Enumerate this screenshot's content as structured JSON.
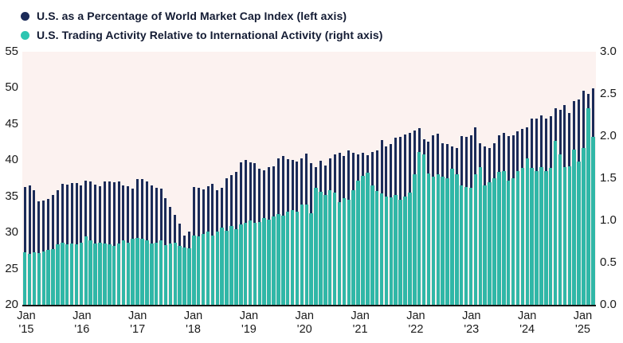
{
  "legend": {
    "items": [
      {
        "name": "market-cap-series",
        "label": "U.S. as a Percentage of World Market Cap Index (left axis)",
        "color": "#1b2b58"
      },
      {
        "name": "trading-activity-series",
        "label": "U.S. Trading Activity Relative to International Activity (right axis)",
        "color": "#2cc5b1"
      }
    ]
  },
  "chart_data": {
    "type": "bar",
    "title": "",
    "x_start": "Jan 2015",
    "x_end": "Feb 2025",
    "x_frequency": "monthly",
    "x_tick_labels": [
      {
        "month": "Jan",
        "year": "'15"
      },
      {
        "month": "Jan",
        "year": "'16"
      },
      {
        "month": "Jan",
        "year": "'17"
      },
      {
        "month": "Jan",
        "year": "'18"
      },
      {
        "month": "Jan",
        "year": "'19"
      },
      {
        "month": "Jan",
        "year": "'20"
      },
      {
        "month": "Jan",
        "year": "'21"
      },
      {
        "month": "Jan",
        "year": "'22"
      },
      {
        "month": "Jan",
        "year": "'23"
      },
      {
        "month": "Jan",
        "year": "'24"
      },
      {
        "month": "Jan",
        "year": "'25"
      }
    ],
    "left_axis": {
      "min": 20,
      "max": 55,
      "ticks": [
        "55",
        "50",
        "45",
        "40",
        "35",
        "30",
        "25",
        "20"
      ]
    },
    "right_axis": {
      "min": 0.0,
      "max": 3.0,
      "ticks": [
        "3.0",
        "2.5",
        "2.0",
        "1.5",
        "1.0",
        "0.5",
        "0.0"
      ]
    },
    "grid": false,
    "legend_position": "top-left",
    "plot_background": "#fcf2f0",
    "baseline_color": "#161616",
    "series": [
      {
        "name": "U.S. as a Percentage of World Market Cap Index",
        "axis": "left",
        "color": "#1b2b58",
        "values": [
          36.3,
          36.5,
          35.9,
          34.3,
          34.4,
          34.6,
          35.2,
          35.9,
          36.7,
          36.6,
          36.8,
          36.9,
          36.5,
          37.2,
          37.1,
          36.6,
          36.4,
          37.1,
          37.1,
          37.0,
          37.1,
          36.5,
          36.4,
          36.1,
          37.4,
          37.4,
          37.1,
          36.5,
          36.2,
          36.1,
          34.7,
          33.5,
          32.4,
          31.2,
          29.6,
          30.1,
          36.3,
          36.2,
          36.0,
          36.4,
          36.7,
          35.9,
          36.2,
          37.5,
          38.0,
          38.4,
          39.7,
          40.0,
          39.7,
          39.6,
          38.8,
          38.6,
          39.0,
          39.2,
          40.3,
          40.6,
          40.1,
          40.0,
          39.8,
          40.3,
          40.9,
          39.6,
          39.0,
          39.9,
          39.3,
          40.3,
          40.8,
          41.0,
          40.6,
          41.4,
          41.0,
          40.8,
          41.0,
          40.7,
          41.1,
          41.4,
          42.8,
          41.9,
          42.2,
          43.1,
          43.2,
          43.6,
          43.8,
          44.1,
          44.4,
          42.9,
          42.6,
          43.4,
          43.7,
          42.4,
          42.2,
          41.9,
          41.7,
          43.3,
          43.2,
          43.4,
          44.6,
          42.4,
          41.9,
          41.7,
          42.3,
          43.5,
          43.8,
          43.3,
          43.4,
          44.0,
          44.3,
          44.6,
          45.8,
          45.8,
          46.2,
          45.8,
          46.1,
          47.2,
          47.0,
          47.6,
          46.5,
          48.2,
          48.4,
          49.6,
          49.2,
          49.9
        ]
      },
      {
        "name": "U.S. Trading Activity Relative to International Activity",
        "axis": "right",
        "color": "#30b7a7",
        "values": [
          0.62,
          0.6,
          0.62,
          0.61,
          0.63,
          0.65,
          0.66,
          0.72,
          0.74,
          0.72,
          0.73,
          0.72,
          0.74,
          0.81,
          0.76,
          0.73,
          0.74,
          0.73,
          0.72,
          0.7,
          0.73,
          0.76,
          0.74,
          0.78,
          0.79,
          0.78,
          0.76,
          0.73,
          0.74,
          0.76,
          0.71,
          0.73,
          0.74,
          0.7,
          0.68,
          0.67,
          0.82,
          0.81,
          0.84,
          0.87,
          0.82,
          0.87,
          0.92,
          0.88,
          0.93,
          0.9,
          0.95,
          0.97,
          1.0,
          0.97,
          0.98,
          1.03,
          1.01,
          1.05,
          1.08,
          1.06,
          1.1,
          1.12,
          1.1,
          1.19,
          1.19,
          1.09,
          1.39,
          1.34,
          1.3,
          1.36,
          1.33,
          1.22,
          1.26,
          1.25,
          1.36,
          1.47,
          1.53,
          1.57,
          1.42,
          1.35,
          1.32,
          1.28,
          1.27,
          1.3,
          1.25,
          1.28,
          1.33,
          1.55,
          1.81,
          1.78,
          1.56,
          1.52,
          1.55,
          1.52,
          1.5,
          1.61,
          1.55,
          1.42,
          1.4,
          1.39,
          1.55,
          1.63,
          1.42,
          1.45,
          1.5,
          1.58,
          1.59,
          1.47,
          1.5,
          1.59,
          1.62,
          1.74,
          1.62,
          1.59,
          1.63,
          1.59,
          1.62,
          1.94,
          1.78,
          1.63,
          1.64,
          1.84,
          1.7,
          1.86,
          2.33,
          1.99
        ]
      }
    ]
  }
}
